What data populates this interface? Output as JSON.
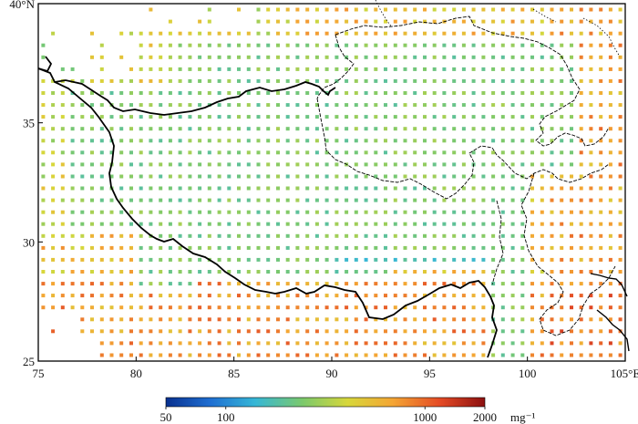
{
  "map": {
    "x_ticks": [
      {
        "value": 75,
        "label": "75"
      },
      {
        "value": 80,
        "label": "80"
      },
      {
        "value": 85,
        "label": "85"
      },
      {
        "value": 90,
        "label": "90"
      },
      {
        "value": 95,
        "label": "95"
      },
      {
        "value": 100,
        "label": "100"
      },
      {
        "value": 105,
        "label": "105°E"
      }
    ],
    "y_ticks": [
      {
        "value": 25,
        "label": "25"
      },
      {
        "value": 30,
        "label": "30"
      },
      {
        "value": 35,
        "label": "35"
      },
      {
        "value": 40,
        "label": "40°N"
      }
    ],
    "lon_range": [
      75,
      105
    ],
    "lat_range": [
      25,
      40
    ],
    "grid_step_deg": 0.5
  },
  "colorbar": {
    "tick_labels": [
      "50",
      "100",
      "1000",
      "2000"
    ],
    "tick_values": [
      50,
      100,
      1000,
      2000
    ],
    "unit": "mg⁻¹",
    "scale": "log",
    "colors": [
      "#08308f",
      "#1f6fd2",
      "#36b7d6",
      "#7cc96b",
      "#d7d73b",
      "#f4a634",
      "#e44a25",
      "#8c1010"
    ]
  }
}
